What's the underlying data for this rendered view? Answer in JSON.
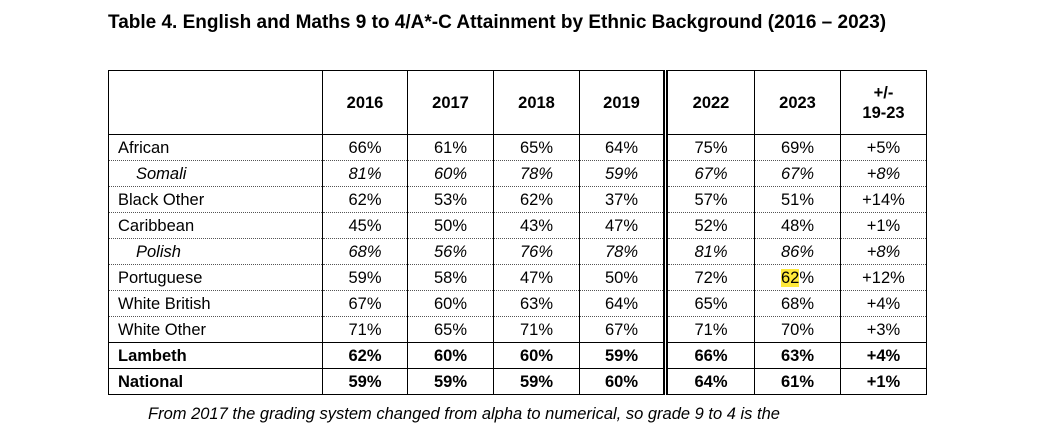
{
  "title": "Table 4. English and Maths 9 to 4/A*-C Attainment by Ethnic Background (2016 – 2023)",
  "table": {
    "headers": [
      "",
      "2016",
      "2017",
      "2018",
      "2019",
      "2022",
      "2023",
      "+/-\n19-23"
    ],
    "rows": [
      {
        "label": "African",
        "style": "normal",
        "values": [
          "66%",
          "61%",
          "65%",
          "64%",
          "75%",
          "69%",
          "+5%"
        ]
      },
      {
        "label": "Somali",
        "style": "italic",
        "values": [
          "81%",
          "60%",
          "78%",
          "59%",
          "67%",
          "67%",
          "+8%"
        ]
      },
      {
        "label": "Black Other",
        "style": "normal",
        "values": [
          "62%",
          "53%",
          "62%",
          "37%",
          "57%",
          "51%",
          "+14%"
        ]
      },
      {
        "label": "Caribbean",
        "style": "normal",
        "values": [
          "45%",
          "50%",
          "43%",
          "47%",
          "52%",
          "48%",
          "+1%"
        ]
      },
      {
        "label": "Polish",
        "style": "italic",
        "values": [
          "68%",
          "56%",
          "76%",
          "78%",
          "81%",
          "86%",
          "+8%"
        ]
      },
      {
        "label": "Portuguese",
        "style": "normal",
        "values": [
          "59%",
          "58%",
          "47%",
          "50%",
          "72%",
          "62%",
          "+12%"
        ],
        "highlight": {
          "col": 5,
          "color": "#ffe93b"
        }
      },
      {
        "label": "White British",
        "style": "normal",
        "values": [
          "67%",
          "60%",
          "63%",
          "64%",
          "65%",
          "68%",
          "+4%"
        ]
      },
      {
        "label": "White Other",
        "style": "normal",
        "values": [
          "71%",
          "65%",
          "71%",
          "67%",
          "71%",
          "70%",
          "+3%"
        ]
      },
      {
        "label": "Lambeth",
        "style": "bold",
        "values": [
          "62%",
          "60%",
          "60%",
          "59%",
          "66%",
          "63%",
          "+4%"
        ]
      },
      {
        "label": "National",
        "style": "bold",
        "values": [
          "59%",
          "59%",
          "59%",
          "60%",
          "64%",
          "61%",
          "+1%"
        ]
      }
    ]
  },
  "note": "From 2017 the grading system changed from alpha to numerical, so grade 9 to 4 is the"
}
